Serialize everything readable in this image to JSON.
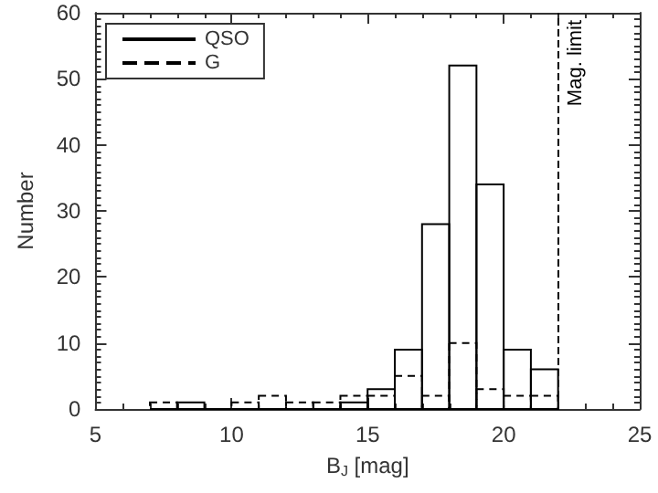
{
  "chart_data": {
    "type": "histogram",
    "xlabel": "B$_{J}$ [mag]",
    "ylabel": "Number",
    "bins": [
      7,
      8,
      9,
      10,
      11,
      12,
      13,
      14,
      15,
      16,
      17,
      18,
      19,
      20,
      21,
      22
    ],
    "series": [
      {
        "name": "QSO",
        "color": "#000000",
        "line_style": "solid",
        "values": [
          0,
          1,
          0,
          0,
          0,
          0,
          0,
          1,
          3,
          9,
          28,
          52,
          34,
          9,
          6
        ]
      },
      {
        "name": "G",
        "color": "#000000",
        "line_style": "dashed",
        "values": [
          1,
          0,
          0,
          1,
          2,
          1,
          1,
          2,
          2,
          5,
          2,
          10,
          3,
          2,
          2
        ]
      }
    ],
    "xlim": [
      5,
      25
    ],
    "xticks": [
      5,
      10,
      15,
      20,
      25
    ],
    "ylim": [
      0,
      60
    ],
    "yticks": [
      0,
      10,
      20,
      30,
      40,
      50,
      60
    ],
    "ref_lines": [
      {
        "axis": "x",
        "value": 22,
        "label": "Mag. limit",
        "color": "#000000",
        "line_style": "dashed"
      }
    ],
    "legend": "top left",
    "grid": false
  }
}
